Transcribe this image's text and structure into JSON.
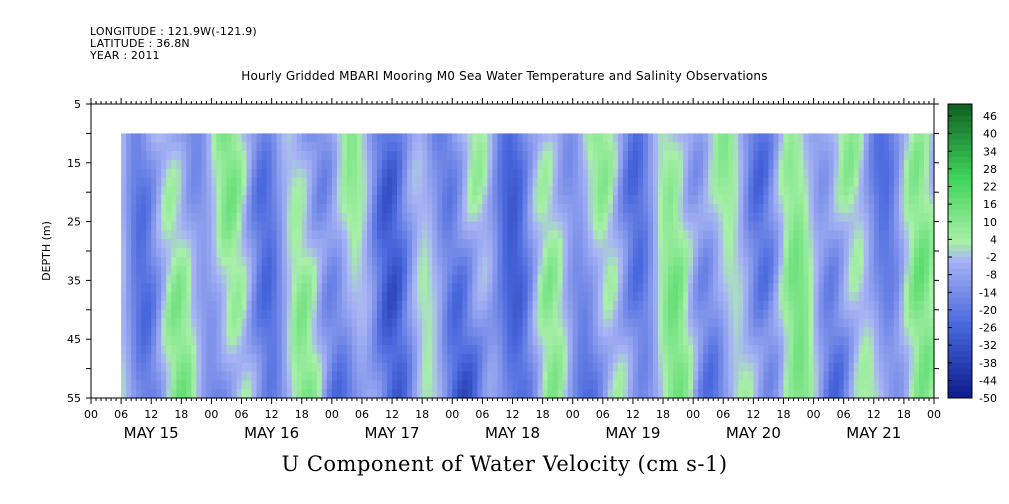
{
  "header": {
    "longitude": "LONGITUDE : 121.9W(-121.9)",
    "latitude": "LATITUDE : 36.8N",
    "year": "YEAR : 2011"
  },
  "chart_data": {
    "type": "heatmap",
    "title": "Hourly Gridded MBARI Mooring M0 Sea Water Temperature and Salinity Observations",
    "xlabel": "U Component of Water Velocity (cm s-1)",
    "ylabel": "DEPTH (m)",
    "x_range_hours": [
      0,
      168
    ],
    "ylim": [
      5,
      55
    ],
    "y_inverted": true,
    "y_ticks": [
      5,
      15,
      25,
      35,
      45,
      55
    ],
    "hour_ticks": [
      "00",
      "06",
      "12",
      "18"
    ],
    "days": [
      "MAY 15",
      "MAY 16",
      "MAY 17",
      "MAY 18",
      "MAY 19",
      "MAY 20",
      "MAY 21"
    ],
    "data_extent": {
      "start_hour": 6,
      "end_hour": 168,
      "depth_min": 10,
      "depth_max": 55
    },
    "colorbar": {
      "range": [
        -50,
        50
      ],
      "labels": [
        "46",
        "40",
        "34",
        "28",
        "22",
        "16",
        "10",
        "4",
        "-2",
        "-8",
        "-14",
        "-20",
        "-26",
        "-32",
        "-38",
        "-44",
        "-50"
      ]
    },
    "grid": false
  },
  "colors": {
    "negative_strong": "#0c1a8c",
    "negative_mid": "#4a68de",
    "negative_weak": "#a8b4f4",
    "positive_weak": "#a8f0a8",
    "positive_mid": "#3ed45a",
    "positive_strong": "#0f5e22"
  }
}
